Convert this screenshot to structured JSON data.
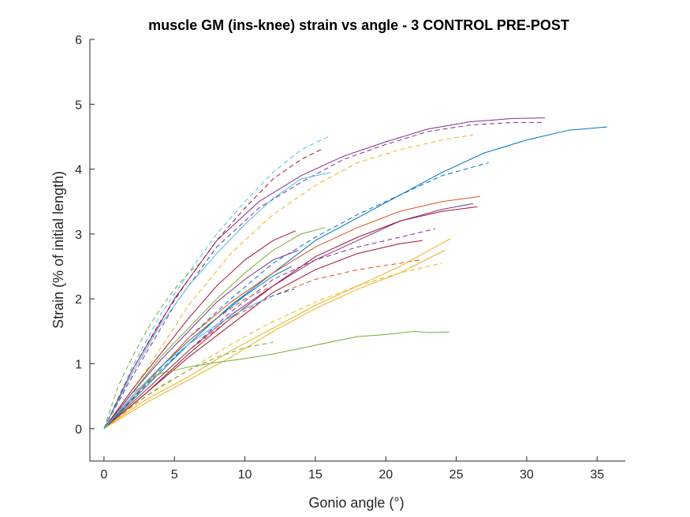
{
  "chart_data": {
    "type": "line",
    "title": "muscle GM (ins-knee) strain vs angle - 3 CONTROL PRE-POST",
    "xlabel": "Gonio angle (°)",
    "ylabel": "Strain (% of initial length)",
    "xlim": [
      -1,
      37
    ],
    "ylim": [
      -0.5,
      6
    ],
    "xticks": [
      "0",
      "5",
      "10",
      "15",
      "20",
      "25",
      "30",
      "35"
    ],
    "yticks": [
      "0",
      "1",
      "2",
      "3",
      "4",
      "5",
      "6"
    ],
    "grid": false,
    "legend": "none",
    "series": [
      {
        "color": "#7E2F8E",
        "style": "solid",
        "x": [
          0,
          2,
          5,
          8,
          11,
          14,
          17,
          20,
          23,
          26,
          29,
          31.3
        ],
        "y": [
          0,
          0.9,
          2.0,
          2.9,
          3.5,
          3.9,
          4.2,
          4.42,
          4.62,
          4.73,
          4.78,
          4.79
        ]
      },
      {
        "color": "#7E2F8E",
        "style": "dashed",
        "x": [
          0,
          2,
          5,
          8,
          11,
          14,
          17,
          20,
          23,
          26,
          29,
          31.3
        ],
        "y": [
          0,
          0.8,
          1.9,
          2.8,
          3.4,
          3.8,
          4.15,
          4.38,
          4.58,
          4.68,
          4.72,
          4.72
        ]
      },
      {
        "color": "#0072BD",
        "style": "solid",
        "x": [
          0,
          3,
          6,
          9,
          12,
          15,
          18,
          21,
          24,
          27,
          30,
          33,
          35.7
        ],
        "y": [
          0,
          0.65,
          1.3,
          1.9,
          2.4,
          2.9,
          3.25,
          3.6,
          3.95,
          4.25,
          4.45,
          4.6,
          4.65
        ]
      },
      {
        "color": "#0072BD",
        "style": "dashed",
        "x": [
          0,
          3,
          6,
          9,
          12,
          15,
          18,
          21,
          24,
          27.3
        ],
        "y": [
          0,
          0.7,
          1.4,
          2.0,
          2.55,
          2.95,
          3.3,
          3.6,
          3.9,
          4.1
        ]
      },
      {
        "color": "#EDB120",
        "style": "dashed",
        "x": [
          0,
          3,
          6,
          9,
          12,
          15,
          18,
          21,
          24,
          26.2
        ],
        "y": [
          0,
          0.9,
          1.9,
          2.7,
          3.3,
          3.75,
          4.1,
          4.3,
          4.45,
          4.53
        ]
      },
      {
        "color": "#4DBEEE",
        "style": "dashed",
        "x": [
          0,
          2,
          4,
          6,
          8,
          10,
          12,
          14,
          16.1
        ],
        "y": [
          0,
          0.95,
          1.75,
          2.4,
          3.0,
          3.5,
          3.95,
          4.3,
          4.52
        ]
      },
      {
        "color": "#A2142F",
        "style": "dashed",
        "x": [
          0,
          2,
          4,
          6,
          8,
          10,
          12,
          14,
          15.4
        ],
        "y": [
          0,
          0.9,
          1.65,
          2.3,
          2.9,
          3.4,
          3.85,
          4.15,
          4.3
        ]
      },
      {
        "color": "#4DBEEE",
        "style": "solid",
        "x": [
          0,
          2,
          4,
          6,
          8,
          10,
          12,
          14,
          16.1
        ],
        "y": [
          0,
          0.85,
          1.6,
          2.2,
          2.7,
          3.15,
          3.55,
          3.85,
          3.95
        ]
      },
      {
        "color": "#D95319",
        "style": "solid",
        "x": [
          0,
          3,
          6,
          9,
          12,
          15,
          18,
          21,
          24,
          26.7
        ],
        "y": [
          0,
          0.7,
          1.4,
          1.95,
          2.4,
          2.8,
          3.1,
          3.35,
          3.5,
          3.58
        ]
      },
      {
        "color": "#7E2F8E",
        "style": "solid",
        "x": [
          0,
          3,
          6,
          9,
          12,
          15,
          18,
          21,
          24,
          26.2
        ],
        "y": [
          0,
          0.6,
          1.2,
          1.75,
          2.2,
          2.6,
          2.9,
          3.2,
          3.38,
          3.47
        ]
      },
      {
        "color": "#A2142F",
        "style": "solid",
        "x": [
          0,
          3,
          6,
          9,
          12,
          15,
          18,
          21,
          24,
          26.5
        ],
        "y": [
          0,
          0.55,
          1.15,
          1.7,
          2.2,
          2.65,
          2.95,
          3.2,
          3.35,
          3.42
        ]
      },
      {
        "color": "#7E2F8E",
        "style": "dashed",
        "x": [
          0,
          3,
          6,
          9,
          12,
          15,
          18,
          21,
          23.5
        ],
        "y": [
          0,
          0.6,
          1.2,
          1.8,
          2.3,
          2.6,
          2.8,
          2.95,
          3.08
        ]
      },
      {
        "color": "#D95319",
        "style": "dashed",
        "x": [
          0,
          3,
          6,
          9,
          12,
          15,
          18,
          21,
          22.4
        ],
        "y": [
          0,
          0.6,
          1.2,
          1.7,
          2.05,
          2.3,
          2.45,
          2.55,
          2.6
        ]
      },
      {
        "color": "#A2142F",
        "style": "solid",
        "x": [
          0,
          3,
          6,
          9,
          12,
          15,
          18,
          21,
          22.6
        ],
        "y": [
          0,
          0.55,
          1.1,
          1.6,
          2.1,
          2.45,
          2.7,
          2.85,
          2.9
        ]
      },
      {
        "color": "#EDB120",
        "style": "solid",
        "x": [
          0,
          3,
          6,
          9,
          12,
          15,
          18,
          21,
          24.6
        ],
        "y": [
          0,
          0.45,
          0.8,
          1.2,
          1.55,
          1.9,
          2.2,
          2.5,
          2.93
        ]
      },
      {
        "color": "#EDB120",
        "style": "solid",
        "x": [
          0,
          3,
          6,
          9,
          12,
          15,
          18,
          21,
          24.2
        ],
        "y": [
          0,
          0.4,
          0.75,
          1.1,
          1.5,
          1.85,
          2.15,
          2.4,
          2.75
        ]
      },
      {
        "color": "#EDB120",
        "style": "dashed",
        "x": [
          0,
          3,
          6,
          9,
          12,
          15,
          18,
          21,
          24
        ],
        "y": [
          0,
          0.5,
          0.9,
          1.3,
          1.65,
          1.95,
          2.2,
          2.4,
          2.55
        ]
      },
      {
        "color": "#77AC30",
        "style": "solid",
        "x": [
          0,
          2,
          4,
          6,
          8,
          10,
          12,
          14,
          16,
          18,
          20,
          22,
          23,
          24.5
        ],
        "y": [
          0,
          0.55,
          0.85,
          0.95,
          1.02,
          1.08,
          1.15,
          1.24,
          1.33,
          1.42,
          1.45,
          1.5,
          1.48,
          1.49
        ]
      },
      {
        "color": "#77AC30",
        "style": "dashed",
        "x": [
          0,
          1,
          2,
          3,
          4,
          5,
          6,
          6.8
        ],
        "y": [
          0,
          0.65,
          1.1,
          1.5,
          1.85,
          2.15,
          2.4,
          2.55
        ]
      },
      {
        "color": "#77AC30",
        "style": "solid",
        "x": [
          0,
          2,
          4,
          6,
          8,
          10,
          12,
          14,
          15.7
        ],
        "y": [
          0,
          0.55,
          1.1,
          1.55,
          2.0,
          2.4,
          2.75,
          3.0,
          3.1
        ]
      },
      {
        "color": "#77AC30",
        "style": "dashed",
        "x": [
          0,
          2,
          4,
          6,
          8,
          10,
          12
        ],
        "y": [
          0,
          0.35,
          0.65,
          0.9,
          1.1,
          1.25,
          1.33
        ]
      },
      {
        "color": "#0072BD",
        "style": "solid",
        "x": [
          0,
          2,
          4,
          6,
          8,
          10,
          12,
          13.3
        ],
        "y": [
          0,
          0.5,
          0.95,
          1.35,
          1.7,
          2.05,
          2.35,
          2.5
        ]
      },
      {
        "color": "#0072BD",
        "style": "dashed",
        "x": [
          0,
          2,
          4,
          6,
          8,
          10,
          12,
          13.5
        ],
        "y": [
          0,
          0.45,
          0.9,
          1.3,
          1.6,
          1.85,
          2.05,
          2.15
        ]
      },
      {
        "color": "#D95319",
        "style": "dashed",
        "x": [
          0,
          2,
          4,
          6,
          8,
          10,
          12
        ],
        "y": [
          0,
          0.5,
          0.95,
          1.35,
          1.7,
          2.0,
          2.2
        ]
      },
      {
        "color": "#A2142F",
        "style": "solid",
        "x": [
          0,
          2,
          4,
          6,
          8,
          10,
          12,
          13.6
        ],
        "y": [
          0,
          0.6,
          1.15,
          1.7,
          2.2,
          2.6,
          2.9,
          3.05
        ]
      },
      {
        "color": "#7E2F8E",
        "style": "solid",
        "x": [
          0,
          2,
          4,
          6,
          8,
          10,
          12,
          13.8
        ],
        "y": [
          0,
          0.55,
          1.05,
          1.5,
          1.95,
          2.3,
          2.6,
          2.75
        ]
      },
      {
        "color": "#4DBEEE",
        "style": "solid",
        "x": [
          0,
          2,
          4,
          6,
          8,
          10,
          11.5
        ],
        "y": [
          0,
          0.5,
          0.95,
          1.3,
          1.6,
          1.85,
          2.0
        ]
      }
    ]
  }
}
